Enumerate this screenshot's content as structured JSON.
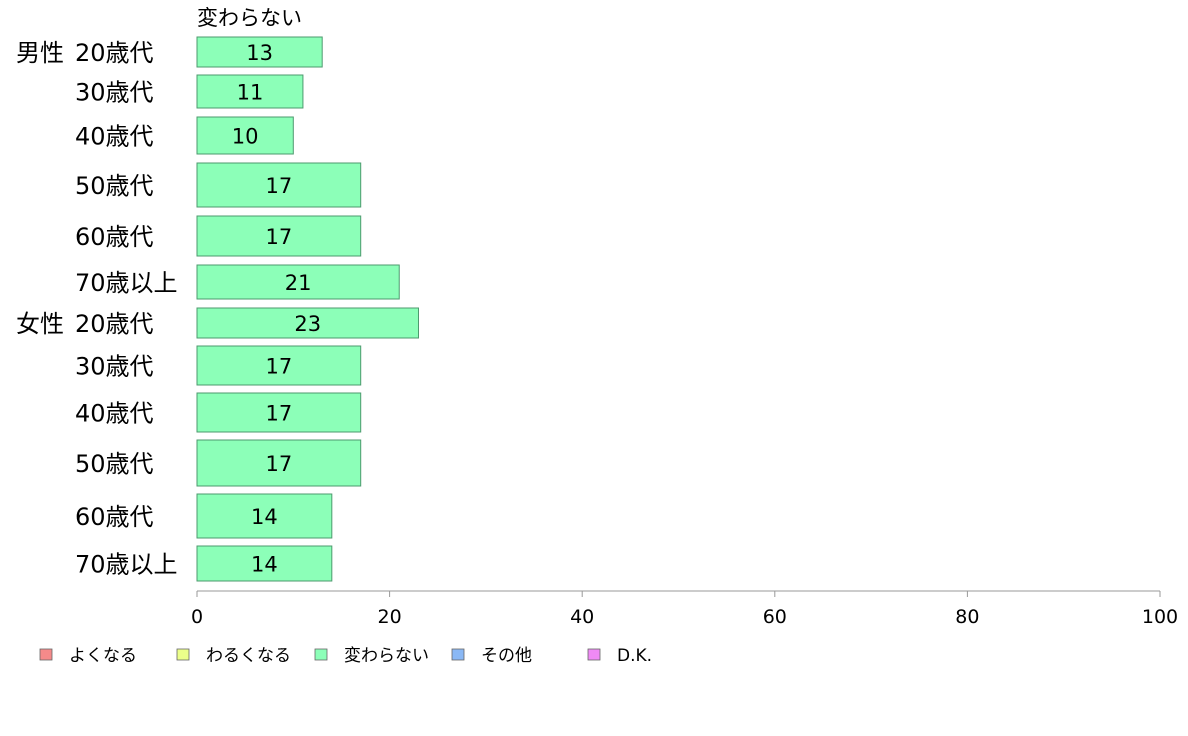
{
  "chart_data": {
    "type": "bar",
    "orientation": "horizontal",
    "series_title": "変わらない",
    "groups": [
      {
        "label": "男性",
        "categories": [
          "20歳代",
          "30歳代",
          "40歳代",
          "50歳代",
          "60歳代",
          "70歳以上"
        ],
        "values": [
          13,
          11,
          10,
          17,
          17,
          21
        ]
      },
      {
        "label": "女性",
        "categories": [
          "20歳代",
          "30歳代",
          "40歳代",
          "50歳代",
          "60歳代",
          "70歳以上"
        ],
        "values": [
          23,
          17,
          17,
          17,
          14,
          14
        ]
      }
    ],
    "series": [
      {
        "name": "変わらない",
        "color": "#8cffb8"
      }
    ],
    "xlim": [
      0,
      100
    ],
    "xticks": [
      "0",
      "20",
      "40",
      "60",
      "80",
      "100"
    ],
    "grid": false,
    "legend_position": "bottom",
    "legend": [
      {
        "label": "よくなる",
        "color": "#f58a8a"
      },
      {
        "label": "わるくなる",
        "color": "#ecff8a"
      },
      {
        "label": "変わらない",
        "color": "#8cffb8"
      },
      {
        "label": "その他",
        "color": "#8ab8f5"
      },
      {
        "label": "D.K.",
        "color": "#f08af5"
      }
    ]
  }
}
